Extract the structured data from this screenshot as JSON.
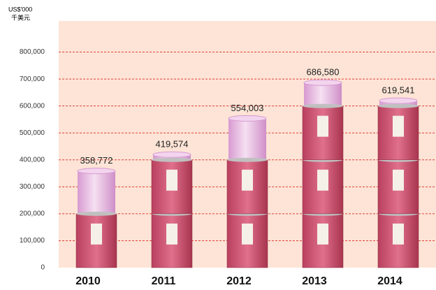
{
  "chart_data": {
    "type": "bar",
    "y_axis_label": "US$'000",
    "y_axis_label_2": "千美元",
    "categories": [
      "2010",
      "2011",
      "2012",
      "2013",
      "2014"
    ],
    "values": [
      358772,
      419574,
      554003,
      686580,
      619541
    ],
    "value_labels": [
      "358,772",
      "419,574",
      "554,003",
      "686,580",
      "619,541"
    ],
    "color": "#e8b8e0",
    "ylim": [
      0,
      900000
    ],
    "yticks": [
      0,
      {
        "value": 100000,
        "label": "100,000"
      },
      {
        "value": 200000,
        "label": "200,000"
      },
      {
        "value": 300000,
        "label": "300,000"
      },
      {
        "value": 400000,
        "label": "400,000"
      },
      {
        "value": 500000,
        "label": "500,000"
      },
      {
        "value": 600000,
        "label": "600,000"
      },
      {
        "value": 700000,
        "label": "700,000"
      },
      {
        "value": 800000,
        "label": "800,000"
      }
    ],
    "grid": true
  }
}
